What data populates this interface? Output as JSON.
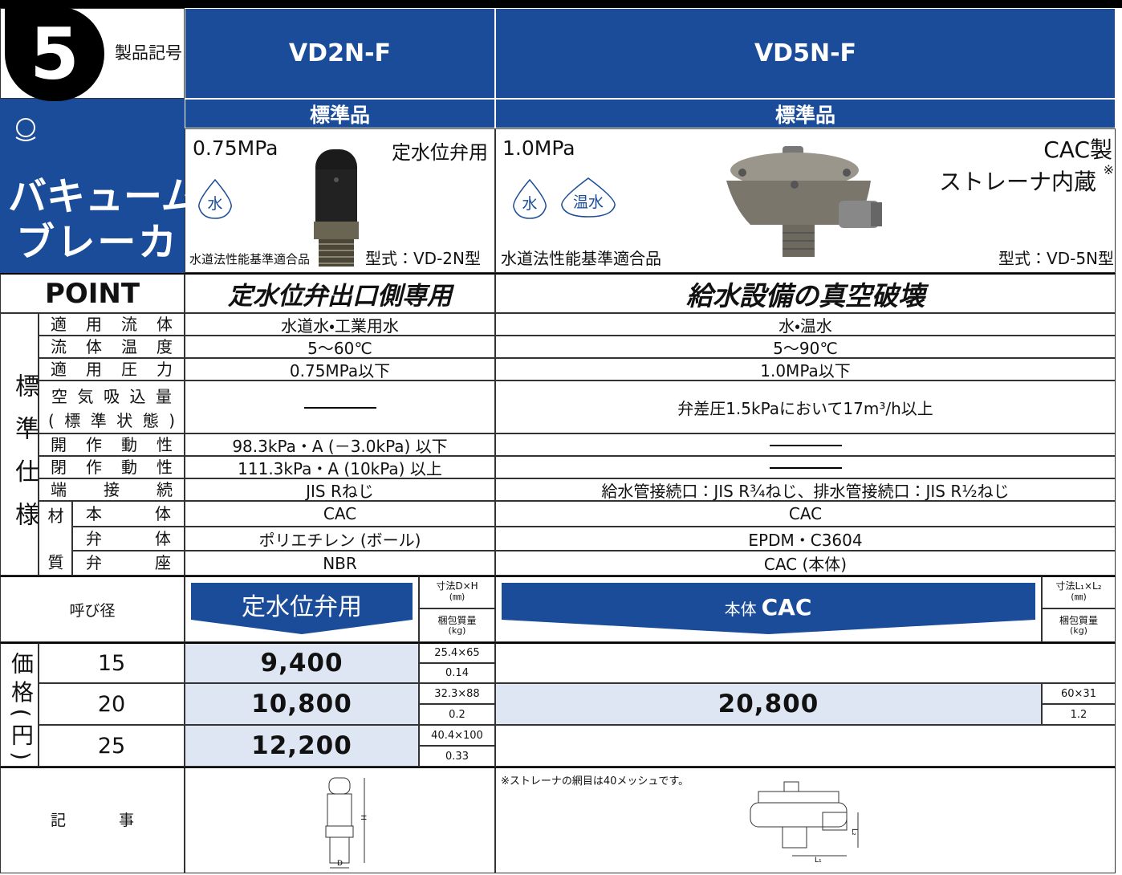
{
  "header": {
    "number": "5",
    "code_label": "製品記号",
    "models": [
      "VD2N-F",
      "VD5N-F"
    ],
    "category": [
      "バキューム",
      "ブレーカ"
    ]
  },
  "products": [
    {
      "grade": "標準品",
      "pressure": "0.75MPa",
      "use": "定水位弁用",
      "fluids": [
        "水"
      ],
      "compliance": "水道法性能基準適合品",
      "model_type": "型式：VD-2N型"
    },
    {
      "grade": "標準品",
      "pressure": "1.0MPa",
      "material": "CAC製",
      "feature": "ストレーナ内蔵",
      "feature_mark": "※",
      "fluids": [
        "水",
        "温水"
      ],
      "compliance": "水道法性能基準適合品",
      "model_type": "型式：VD-5N型"
    }
  ],
  "point": {
    "label": "POINT",
    "texts": [
      "定水位弁出口側専用",
      "給水設備の真空破壊"
    ]
  },
  "specs": {
    "section_label": "標準仕様",
    "rows": [
      {
        "label": "適用流体",
        "values": [
          "水道水・工業用水",
          "水・温水"
        ]
      },
      {
        "label": "流体温度",
        "values": [
          "5～60℃",
          "5～90℃"
        ]
      },
      {
        "label": "適用圧力",
        "values": [
          "0.75MPa以下",
          "1.0MPa以下"
        ]
      },
      {
        "label": [
          "空気吸込量",
          "(標準状態)"
        ],
        "values": [
          null,
          "弁差圧1.5kPaにおいて17m³/h以上"
        ]
      },
      {
        "label": "開作動性",
        "values": [
          "98.3kPa・A (－3.0kPa) 以下",
          null
        ]
      },
      {
        "label": "閉作動性",
        "values": [
          "111.3kPa・A (10kPa) 以上",
          null
        ]
      },
      {
        "label": "端接続",
        "values": [
          "JIS Rねじ",
          "給水管接続口：JIS R¾ねじ、排水管接続口：JIS R½ねじ"
        ]
      }
    ],
    "material": {
      "label": "材質",
      "rows": [
        {
          "label": "本体",
          "values": [
            "CAC",
            "CAC"
          ]
        },
        {
          "label": "弁体",
          "values": [
            "ポリエチレン (ボール)",
            "EPDM・C3604"
          ]
        },
        {
          "label": "弁座",
          "values": [
            "NBR",
            "CAC (本体)"
          ]
        }
      ]
    }
  },
  "prices": {
    "section_label": "価格(円)",
    "size_header": "呼び径",
    "vd2": {
      "banner": "定水位弁用",
      "dim_header": [
        "寸法D×H",
        "(㎜)"
      ],
      "weight_header": [
        "梱包質量",
        "(kg)"
      ],
      "rows": [
        {
          "size": 15,
          "price": "9,400",
          "dims": "25.4×65",
          "weight": "0.14"
        },
        {
          "size": 20,
          "price": "10,800",
          "dims": "32.3×88",
          "weight": "0.2"
        },
        {
          "size": 25,
          "price": "12,200",
          "dims": "40.4×100",
          "weight": "0.33"
        }
      ]
    },
    "vd5": {
      "banner_prefix": "本体",
      "banner_material": "CAC",
      "dim_header": [
        "寸法L₁×L₂",
        "(㎜)"
      ],
      "weight_header": [
        "梱包質量",
        "(kg)"
      ],
      "price": "20,800",
      "dims": "60×31",
      "weight": "1.2"
    }
  },
  "notes": {
    "label": "記事",
    "vd5_note": "※ストレーナの網目は40メッシュです。",
    "vd2_dims": [
      "H",
      "D"
    ],
    "vd5_dims": [
      "L₁",
      "L₂"
    ]
  }
}
